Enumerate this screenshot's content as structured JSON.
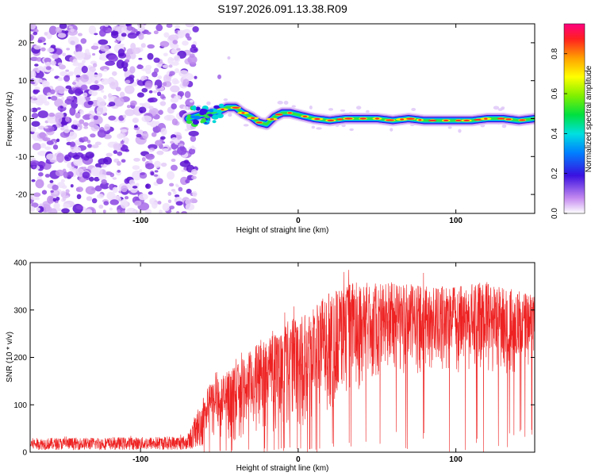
{
  "title": "S197.2026.091.13.38.R09",
  "chart_data": [
    {
      "type": "heatmap",
      "id": "spectrogram",
      "xlabel": "Height of straight line (km)",
      "ylabel": "Frequency (Hz)",
      "xlim": [
        -170,
        150
      ],
      "ylim": [
        -25,
        25
      ],
      "x_ticks": [
        -100,
        0,
        100
      ],
      "y_ticks": [
        -20,
        -10,
        0,
        10,
        20
      ],
      "noise_region_x": [
        -170,
        -67
      ],
      "ridge": {
        "x": [
          -70,
          -62,
          -55,
          -50,
          -45,
          -40,
          -35,
          -30,
          -25,
          -20,
          -15,
          -10,
          -5,
          0,
          5,
          10,
          20,
          30,
          40,
          50,
          60,
          70,
          80,
          90,
          100,
          110,
          120,
          130,
          140,
          150
        ],
        "freq": [
          0,
          1,
          1.5,
          2,
          3,
          3,
          1.5,
          0.5,
          -1,
          -1.5,
          0.5,
          1.5,
          1.5,
          1,
          0.5,
          0,
          -0.5,
          0,
          0,
          0,
          -0.5,
          0,
          -0.5,
          -0.5,
          -0.5,
          -0.5,
          0,
          0,
          -0.5,
          0
        ]
      },
      "colorbar": {
        "label": "Normalized spectral amplitude",
        "range": [
          0,
          0.95
        ],
        "ticks": [
          0.0,
          0.2,
          0.4,
          0.6,
          0.8
        ],
        "tick_labels": [
          "0.0",
          "0.2",
          "0.4",
          "0.6",
          "0.8"
        ]
      }
    },
    {
      "type": "line",
      "id": "snr",
      "xlabel": "Height of straight line (km)",
      "ylabel": "SNR (10 * v/v)",
      "xlim": [
        -170,
        150
      ],
      "ylim": [
        0,
        400
      ],
      "x_ticks": [
        -100,
        0,
        100
      ],
      "y_ticks": [
        0,
        100,
        200,
        300,
        400
      ],
      "line_color": "#ee2222",
      "envelope": {
        "x": [
          -170,
          -100,
          -70,
          -62,
          -55,
          -40,
          -20,
          0,
          20,
          35,
          60,
          80,
          100,
          120,
          140,
          150
        ],
        "upper": [
          30,
          32,
          35,
          110,
          150,
          180,
          250,
          290,
          340,
          360,
          360,
          350,
          350,
          360,
          340,
          330
        ],
        "lower": [
          5,
          5,
          5,
          10,
          15,
          20,
          30,
          40,
          60,
          120,
          150,
          160,
          170,
          150,
          160,
          180
        ]
      }
    }
  ]
}
